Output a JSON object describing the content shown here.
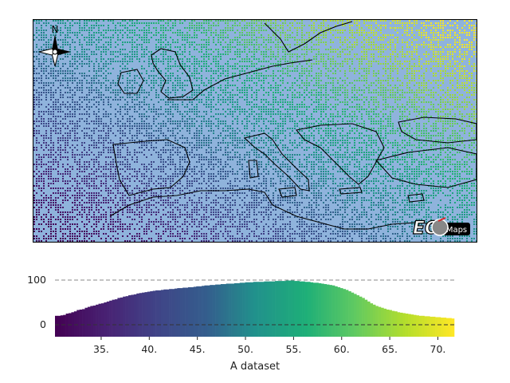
{
  "map": {
    "compass_label": "N",
    "logo": {
      "text_left": "EO",
      "text_right": "Maps",
      "icon": "globe-icon"
    },
    "colormap": "viridis",
    "land_color": "#ffffff",
    "sea_color": "#8fb3dc",
    "coastline_color": "#000000"
  },
  "chart_data": {
    "type": "bar",
    "xlabel": "A dataset",
    "xlim": [
      30.2,
      71.7
    ],
    "ylim": [
      -25,
      112
    ],
    "xticks": [
      "35.",
      "40.",
      "45.",
      "50.",
      "55.",
      "60.",
      "65.",
      "70."
    ],
    "yticks": [
      "0",
      "100"
    ],
    "reference_lines": [
      100,
      0
    ],
    "colormap": "viridis",
    "bins": {
      "start": 30.2,
      "end": 71.7,
      "counts": [
        20,
        20,
        21,
        22,
        25,
        26,
        28,
        30,
        33,
        34,
        35,
        38,
        40,
        42,
        43,
        45,
        47,
        48,
        50,
        52,
        54,
        56,
        57,
        60,
        61,
        63,
        64,
        66,
        67,
        68,
        70,
        71,
        72,
        73,
        74,
        75,
        76,
        77,
        77,
        78,
        79,
        79,
        80,
        80,
        81,
        82,
        82,
        83,
        83,
        84,
        84,
        85,
        86,
        86,
        87,
        88,
        88,
        89,
        89,
        90,
        90,
        91,
        91,
        92,
        92,
        92,
        93,
        93,
        94,
        94,
        95,
        95,
        95,
        96,
        96,
        96,
        96,
        97,
        97,
        97,
        97,
        98,
        98,
        98,
        98,
        99,
        99,
        99,
        98,
        98,
        97,
        97,
        96,
        96,
        95,
        94,
        94,
        93,
        92,
        91,
        90,
        89,
        88,
        86,
        84,
        82,
        80,
        78,
        75,
        72,
        69,
        66,
        63,
        60,
        56,
        52,
        48,
        45,
        42,
        40,
        38,
        36,
        34,
        33,
        31,
        30,
        28,
        27,
        26,
        25,
        24,
        23,
        22,
        21,
        20,
        20,
        19,
        19,
        18,
        18,
        17,
        17,
        16,
        16,
        15,
        15,
        14
      ]
    }
  }
}
